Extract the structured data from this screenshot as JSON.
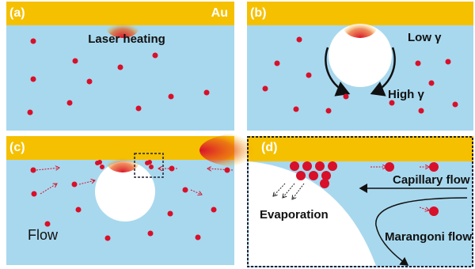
{
  "panels": [
    {
      "label": "(a)",
      "texts": [
        "Au",
        "Laser heating"
      ]
    },
    {
      "label": "(b)",
      "texts": [
        "Low γ",
        "High γ"
      ]
    },
    {
      "label": "(c)",
      "texts": [
        "Flow"
      ]
    },
    {
      "label": "(d)",
      "texts": [
        "Evaporation",
        "Capillary flow",
        "Marangoni flow"
      ]
    }
  ]
}
